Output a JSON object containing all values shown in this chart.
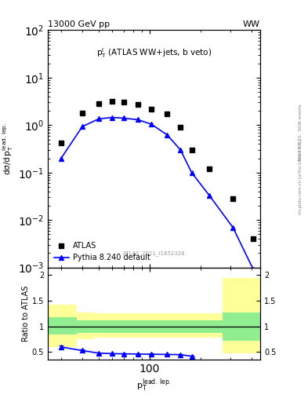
{
  "title_left": "13000 GeV pp",
  "title_right": "WW",
  "plot_label": "$p_T^l$ (ATLAS WW+jets, b veto)",
  "watermark": "ATLAS_2021_I1852328",
  "right_label_top": "Rivet 3.1.10,  500k events",
  "right_label_bot": "mcplots.cern.ch [arXiv:1306.3436]",
  "ylabel_main": "$d\\sigma/d\\,p_T^{\\mathrm{lead.\\,lep.}}$",
  "ylabel_ratio": "Ratio to ATLAS",
  "xlabel": "$p_T^{\\mathrm{lead.\\,lep.}}$",
  "ylim_main": [
    0.001,
    100.0
  ],
  "ylim_ratio": [
    0.35,
    2.15
  ],
  "xlim": [
    25,
    450
  ],
  "atlas_x": [
    30,
    40,
    50,
    60,
    70,
    85,
    102,
    127,
    152,
    177,
    225,
    310,
    410
  ],
  "atlas_y": [
    0.42,
    1.8,
    2.8,
    3.2,
    3.0,
    2.7,
    2.2,
    1.7,
    0.92,
    0.3,
    0.12,
    0.028,
    0.004
  ],
  "pythia_x": [
    30,
    40,
    50,
    60,
    70,
    85,
    102,
    127,
    152,
    177,
    225,
    310,
    410
  ],
  "pythia_y": [
    0.2,
    0.93,
    1.35,
    1.45,
    1.4,
    1.3,
    1.05,
    0.62,
    0.3,
    0.1,
    0.033,
    0.007,
    0.0009
  ],
  "ratio_y": [
    0.6,
    0.53,
    0.48,
    0.47,
    0.467,
    0.462,
    0.458,
    0.455,
    0.45,
    0.42,
    null,
    null,
    null
  ],
  "ratio_err": [
    0.03,
    0.02,
    0.015,
    0.012,
    0.012,
    0.012,
    0.012,
    0.012,
    0.012,
    0.015,
    null,
    null,
    null
  ],
  "band_x_edges": [
    25,
    37,
    47,
    57,
    67,
    80,
    97,
    120,
    145,
    170,
    210,
    270,
    370,
    450
  ],
  "green_band_lo": [
    0.85,
    0.88,
    0.88,
    0.88,
    0.88,
    0.88,
    0.88,
    0.88,
    0.88,
    0.88,
    0.88,
    0.72,
    0.72
  ],
  "green_band_hi": [
    1.18,
    1.12,
    1.12,
    1.12,
    1.12,
    1.12,
    1.12,
    1.12,
    1.12,
    1.12,
    1.12,
    1.28,
    1.28
  ],
  "yellow_band_lo": [
    0.6,
    0.75,
    0.78,
    0.78,
    0.78,
    0.78,
    0.78,
    0.78,
    0.78,
    0.78,
    0.78,
    0.48,
    0.48
  ],
  "yellow_band_hi": [
    1.42,
    1.28,
    1.25,
    1.25,
    1.25,
    1.25,
    1.25,
    1.25,
    1.25,
    1.25,
    1.25,
    1.95,
    1.95
  ],
  "atlas_color": "black",
  "pythia_color": "blue",
  "green_color": "#90ee90",
  "yellow_color": "#ffff99",
  "legend_atlas": "ATLAS",
  "legend_pythia": "Pythia 8.240 default"
}
